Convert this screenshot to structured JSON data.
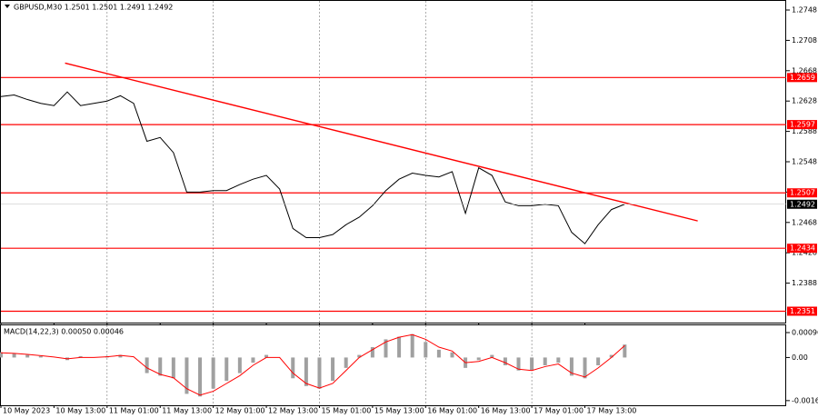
{
  "chart_data": [
    {
      "type": "line",
      "title": "GBPUSD,M30  1.2501 1.2501 1.2491 1.2492",
      "x": [
        0,
        6,
        12,
        18,
        24,
        30,
        36,
        42,
        48,
        54,
        60,
        66,
        72,
        78,
        84,
        90,
        96,
        102,
        108,
        114,
        120,
        126,
        132,
        138,
        144,
        150,
        156,
        162,
        168,
        174,
        180,
        186,
        192,
        198,
        204,
        210,
        216,
        222,
        228,
        234,
        240,
        246,
        252,
        258,
        264,
        270,
        276,
        282
      ],
      "series": [
        {
          "color": "#000000",
          "values": [
            1.2634,
            1.2636,
            1.263,
            1.2625,
            1.2622,
            1.264,
            1.2622,
            1.2625,
            1.2628,
            1.2635,
            1.2625,
            1.2575,
            1.258,
            1.256,
            1.2508,
            1.2508,
            1.251,
            1.251,
            1.2518,
            1.2525,
            1.253,
            1.2512,
            1.246,
            1.2448,
            1.2448,
            1.2452,
            1.2465,
            1.2475,
            1.249,
            1.251,
            1.2525,
            1.2533,
            1.253,
            1.2528,
            1.2535,
            1.248,
            1.254,
            1.253,
            1.2495,
            1.249,
            1.249,
            1.2492,
            1.249,
            1.2455,
            1.244,
            1.2465,
            1.2485,
            1.2492
          ]
        }
      ],
      "trendline": {
        "x": [
          29,
          315
        ],
        "values": [
          1.2678,
          1.247
        ],
        "color": "#ff0000"
      },
      "levels": [
        1.2659,
        1.2597,
        1.2507,
        1.2434,
        1.2351
      ],
      "level_color": "#ff0000",
      "last_price": 1.2492,
      "xlim": [
        0,
        355
      ],
      "ylim": [
        1.2336,
        1.276
      ],
      "yticks": [
        1.2748,
        1.2708,
        1.2668,
        1.2628,
        1.2588,
        1.2548,
        1.2508,
        1.2468,
        1.2428,
        1.2388
      ],
      "xticks": [
        {
          "value": 0,
          "label": "10 May 2023"
        },
        {
          "value": 24,
          "label": "10 May 13:00"
        },
        {
          "value": 48,
          "label": "11 May 01:00"
        },
        {
          "value": 72,
          "label": "11 May 13:00"
        },
        {
          "value": 96,
          "label": "12 May 01:00"
        },
        {
          "value": 120,
          "label": "12 May 13:00"
        },
        {
          "value": 144,
          "label": "15 May 01:00"
        },
        {
          "value": 168,
          "label": "15 May 13:00"
        },
        {
          "value": 192,
          "label": "16 May 01:00"
        },
        {
          "value": 216,
          "label": "16 May 13:00"
        },
        {
          "value": 240,
          "label": "17 May 01:00"
        },
        {
          "value": 264,
          "label": "17 May 13:00"
        }
      ]
    },
    {
      "type": "bar",
      "title": "MACD(14,22,3) 0.00050 0.00046",
      "x": [
        0,
        6,
        12,
        18,
        24,
        30,
        36,
        42,
        48,
        54,
        60,
        66,
        72,
        78,
        84,
        90,
        96,
        102,
        108,
        114,
        120,
        126,
        132,
        138,
        144,
        150,
        156,
        162,
        168,
        174,
        180,
        186,
        192,
        198,
        204,
        210,
        216,
        222,
        228,
        234,
        240,
        246,
        252,
        258,
        264,
        270,
        276,
        282
      ],
      "series": [
        {
          "style": "bar",
          "color": "#a0a0a0",
          "values": [
            0.0002,
            0.00015,
            0.0001,
            5e-05,
            0,
            -0.0001,
            5e-05,
            0,
            5e-05,
            0.0001,
            0,
            -0.0006,
            -0.0007,
            -0.0008,
            -0.0014,
            -0.0015,
            -0.0012,
            -0.0009,
            -0.0006,
            -0.0002,
            0.0001,
            0,
            -0.0008,
            -0.0011,
            -0.0012,
            -0.0009,
            -0.0004,
            0.0001,
            0.0004,
            0.0007,
            0.0008,
            0.0009,
            0.0006,
            0.0003,
            0.0002,
            -0.0004,
            -0.0001,
            0.0001,
            -0.0003,
            -0.0005,
            -0.0005,
            -0.0003,
            -0.0002,
            -0.0007,
            -0.0008,
            -0.0003,
            0.0001,
            0.0005
          ]
        },
        {
          "style": "line",
          "color": "#ff0000",
          "values": [
            0.00018,
            0.00016,
            0.00012,
            7e-05,
            2e-05,
            -5e-05,
            0,
            0,
            3e-05,
            8e-05,
            3e-05,
            -0.0004,
            -0.00065,
            -0.00078,
            -0.0012,
            -0.00145,
            -0.0013,
            -0.001,
            -0.0007,
            -0.0003,
            0,
            0,
            -0.0006,
            -0.001,
            -0.00118,
            -0.001,
            -0.0005,
            0,
            0.0003,
            0.0006,
            0.00078,
            0.00088,
            0.0007,
            0.0004,
            0.00025,
            -0.0002,
            -0.00015,
            0,
            -0.0002,
            -0.00045,
            -0.0005,
            -0.00035,
            -0.00025,
            -0.0006,
            -0.00075,
            -0.0004,
            0,
            0.00046
          ]
        }
      ],
      "xlim": [
        0,
        355
      ],
      "ylim": [
        -0.00184,
        0.00124
      ],
      "yticks": [
        0.00096,
        {
          "value": 0,
          "label": "0.00"
        },
        -0.00166
      ]
    }
  ]
}
